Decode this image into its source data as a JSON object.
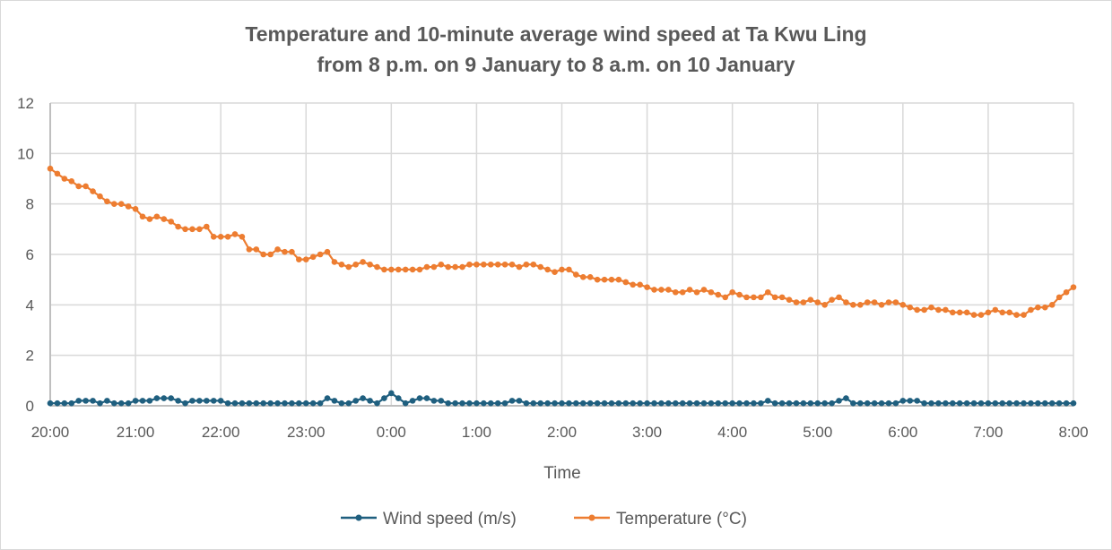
{
  "chart_data": {
    "type": "line",
    "title": [
      "Temperature and 10-minute average wind speed at Ta Kwu Ling",
      "from 8 p.m. on 9 January to 8 a.m. on 10 January"
    ],
    "xlabel": "Time",
    "ylabel": "",
    "ylim": [
      0,
      12
    ],
    "yticks": [
      "0",
      "2",
      "4",
      "6",
      "8",
      "10",
      "12"
    ],
    "xticks": [
      "20:00",
      "21:00",
      "22:00",
      "23:00",
      "0:00",
      "1:00",
      "2:00",
      "3:00",
      "4:00",
      "5:00",
      "6:00",
      "7:00",
      "8:00"
    ],
    "grid": true,
    "legend_placement": "bottom",
    "x": [
      "20:00",
      "20:05",
      "20:10",
      "20:15",
      "20:20",
      "20:25",
      "20:30",
      "20:35",
      "20:40",
      "20:45",
      "20:50",
      "20:55",
      "21:00",
      "21:05",
      "21:10",
      "21:15",
      "21:20",
      "21:25",
      "21:30",
      "21:35",
      "21:40",
      "21:45",
      "21:50",
      "21:55",
      "22:00",
      "22:05",
      "22:10",
      "22:15",
      "22:20",
      "22:25",
      "22:30",
      "22:35",
      "22:40",
      "22:45",
      "22:50",
      "22:55",
      "23:00",
      "23:05",
      "23:10",
      "23:15",
      "23:20",
      "23:25",
      "23:30",
      "23:35",
      "23:40",
      "23:45",
      "23:50",
      "23:55",
      "0:00",
      "0:05",
      "0:10",
      "0:15",
      "0:20",
      "0:25",
      "0:30",
      "0:35",
      "0:40",
      "0:45",
      "0:50",
      "0:55",
      "1:00",
      "1:05",
      "1:10",
      "1:15",
      "1:20",
      "1:25",
      "1:30",
      "1:35",
      "1:40",
      "1:45",
      "1:50",
      "1:55",
      "2:00",
      "2:05",
      "2:10",
      "2:15",
      "2:20",
      "2:25",
      "2:30",
      "2:35",
      "2:40",
      "2:45",
      "2:50",
      "2:55",
      "3:00",
      "3:05",
      "3:10",
      "3:15",
      "3:20",
      "3:25",
      "3:30",
      "3:35",
      "3:40",
      "3:45",
      "3:50",
      "3:55",
      "4:00",
      "4:05",
      "4:10",
      "4:15",
      "4:20",
      "4:25",
      "4:30",
      "4:35",
      "4:40",
      "4:45",
      "4:50",
      "4:55",
      "5:00",
      "5:05",
      "5:10",
      "5:15",
      "5:20",
      "5:25",
      "5:30",
      "5:35",
      "5:40",
      "5:45",
      "5:50",
      "5:55",
      "6:00",
      "6:05",
      "6:10",
      "6:15",
      "6:20",
      "6:25",
      "6:30",
      "6:35",
      "6:40",
      "6:45",
      "6:50",
      "6:55",
      "7:00",
      "7:05",
      "7:10",
      "7:15",
      "7:20",
      "7:25",
      "7:30",
      "7:35",
      "7:40",
      "7:45",
      "7:50",
      "7:55",
      "8:00"
    ],
    "series": [
      {
        "name": "Wind speed (m/s)",
        "color": "#1f5f7f",
        "values": [
          0.1,
          0.1,
          0.1,
          0.1,
          0.2,
          0.2,
          0.2,
          0.1,
          0.2,
          0.1,
          0.1,
          0.1,
          0.2,
          0.2,
          0.2,
          0.3,
          0.3,
          0.3,
          0.2,
          0.1,
          0.2,
          0.2,
          0.2,
          0.2,
          0.2,
          0.1,
          0.1,
          0.1,
          0.1,
          0.1,
          0.1,
          0.1,
          0.1,
          0.1,
          0.1,
          0.1,
          0.1,
          0.1,
          0.1,
          0.3,
          0.2,
          0.1,
          0.1,
          0.2,
          0.3,
          0.2,
          0.1,
          0.3,
          0.5,
          0.3,
          0.1,
          0.2,
          0.3,
          0.3,
          0.2,
          0.2,
          0.1,
          0.1,
          0.1,
          0.1,
          0.1,
          0.1,
          0.1,
          0.1,
          0.1,
          0.2,
          0.2,
          0.1,
          0.1,
          0.1,
          0.1,
          0.1,
          0.1,
          0.1,
          0.1,
          0.1,
          0.1,
          0.1,
          0.1,
          0.1,
          0.1,
          0.1,
          0.1,
          0.1,
          0.1,
          0.1,
          0.1,
          0.1,
          0.1,
          0.1,
          0.1,
          0.1,
          0.1,
          0.1,
          0.1,
          0.1,
          0.1,
          0.1,
          0.1,
          0.1,
          0.1,
          0.2,
          0.1,
          0.1,
          0.1,
          0.1,
          0.1,
          0.1,
          0.1,
          0.1,
          0.1,
          0.2,
          0.3,
          0.1,
          0.1,
          0.1,
          0.1,
          0.1,
          0.1,
          0.1,
          0.2,
          0.2,
          0.2,
          0.1,
          0.1,
          0.1,
          0.1,
          0.1,
          0.1,
          0.1,
          0.1,
          0.1,
          0.1,
          0.1,
          0.1,
          0.1,
          0.1,
          0.1,
          0.1,
          0.1,
          0.1,
          0.1,
          0.1,
          0.1,
          0.1
        ]
      },
      {
        "name": "Temperature (°C)",
        "color": "#ed7d31",
        "values": [
          9.4,
          9.2,
          9.0,
          8.9,
          8.7,
          8.7,
          8.5,
          8.3,
          8.1,
          8.0,
          8.0,
          7.9,
          7.8,
          7.5,
          7.4,
          7.5,
          7.4,
          7.3,
          7.1,
          7.0,
          7.0,
          7.0,
          7.1,
          6.7,
          6.7,
          6.7,
          6.8,
          6.7,
          6.2,
          6.2,
          6.0,
          6.0,
          6.2,
          6.1,
          6.1,
          5.8,
          5.8,
          5.9,
          6.0,
          6.1,
          5.7,
          5.6,
          5.5,
          5.6,
          5.7,
          5.6,
          5.5,
          5.4,
          5.4,
          5.4,
          5.4,
          5.4,
          5.4,
          5.5,
          5.5,
          5.6,
          5.5,
          5.5,
          5.5,
          5.6,
          5.6,
          5.6,
          5.6,
          5.6,
          5.6,
          5.6,
          5.5,
          5.6,
          5.6,
          5.5,
          5.4,
          5.3,
          5.4,
          5.4,
          5.2,
          5.1,
          5.1,
          5.0,
          5.0,
          5.0,
          5.0,
          4.9,
          4.8,
          4.8,
          4.7,
          4.6,
          4.6,
          4.6,
          4.5,
          4.5,
          4.6,
          4.5,
          4.6,
          4.5,
          4.4,
          4.3,
          4.5,
          4.4,
          4.3,
          4.3,
          4.3,
          4.5,
          4.3,
          4.3,
          4.2,
          4.1,
          4.1,
          4.2,
          4.1,
          4.0,
          4.2,
          4.3,
          4.1,
          4.0,
          4.0,
          4.1,
          4.1,
          4.0,
          4.1,
          4.1,
          4.0,
          3.9,
          3.8,
          3.8,
          3.9,
          3.8,
          3.8,
          3.7,
          3.7,
          3.7,
          3.6,
          3.6,
          3.7,
          3.8,
          3.7,
          3.7,
          3.6,
          3.6,
          3.8,
          3.9,
          3.9,
          4.0,
          4.3,
          4.5,
          4.7
        ]
      }
    ]
  }
}
